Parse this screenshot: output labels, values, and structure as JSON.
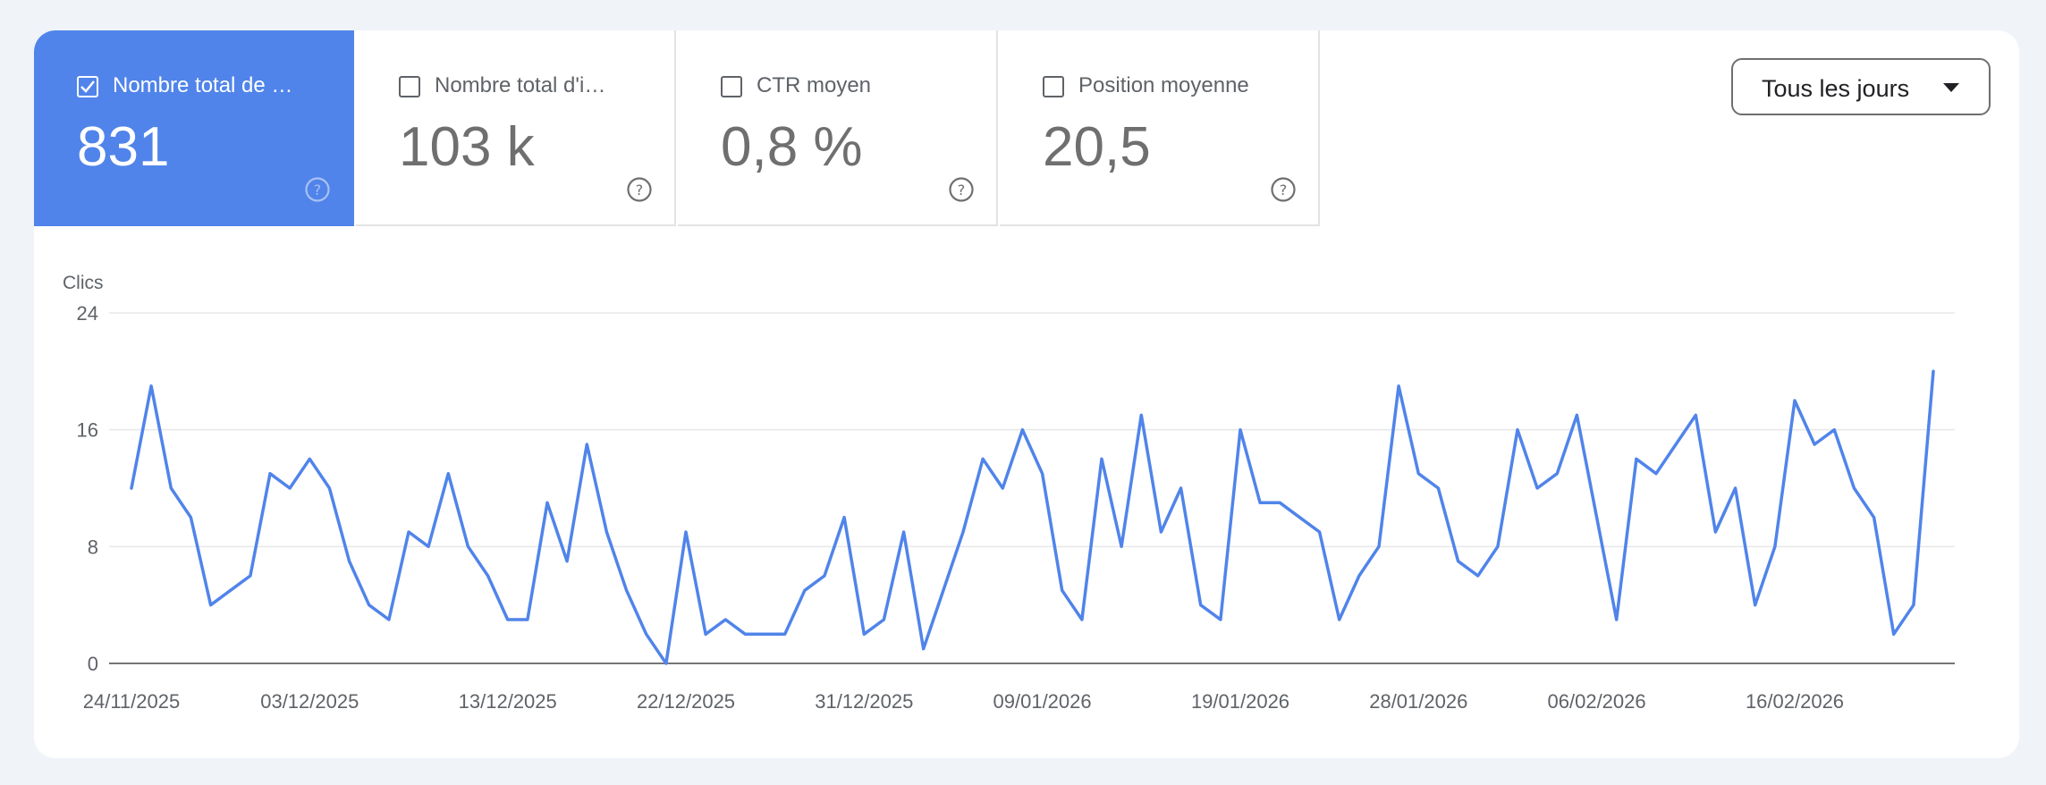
{
  "metrics": [
    {
      "label": "Nombre total de …",
      "value": "831",
      "checked": true
    },
    {
      "label": "Nombre total d'i…",
      "value": "103 k",
      "checked": false
    },
    {
      "label": "CTR moyen",
      "value": "0,8 %",
      "checked": false
    },
    {
      "label": "Position moyenne",
      "value": "20,5",
      "checked": false
    }
  ],
  "period_select": {
    "value": "Tous les jours"
  },
  "colors": {
    "accent": "#5084ea",
    "line": "#5084ea",
    "grid": "#e8e8e8",
    "axis": "#5f6368"
  },
  "chart_data": {
    "type": "line",
    "ylabel": "Clics",
    "ylim": [
      0,
      24
    ],
    "yticks": [
      0,
      8,
      16,
      24
    ],
    "x_tick_labels": [
      "24/11/2025",
      "03/12/2025",
      "13/12/2025",
      "22/12/2025",
      "31/12/2025",
      "09/01/2026",
      "19/01/2026",
      "28/01/2026",
      "06/02/2026",
      "16/02/2026"
    ],
    "x_tick_indices": [
      0,
      9,
      19,
      28,
      37,
      46,
      56,
      65,
      74,
      84
    ],
    "grid": true,
    "series": [
      {
        "values": [
          12,
          19,
          12,
          10,
          4,
          5,
          6,
          13,
          12,
          14,
          12,
          7,
          4,
          3,
          9,
          8,
          13,
          8,
          6,
          3,
          3,
          11,
          7,
          15,
          9,
          5,
          2,
          0,
          9,
          2,
          3,
          2,
          2,
          2,
          5,
          6,
          10,
          2,
          3,
          9,
          1,
          5,
          9,
          14,
          12,
          16,
          13,
          5,
          3,
          14,
          8,
          17,
          9,
          12,
          4,
          3,
          16,
          11,
          11,
          10,
          9,
          3,
          6,
          8,
          19,
          13,
          12,
          7,
          6,
          8,
          16,
          12,
          13,
          17,
          10,
          3,
          14,
          13,
          15,
          17,
          9,
          12,
          4,
          8,
          18,
          15,
          16,
          12,
          10,
          2,
          4,
          20
        ]
      }
    ]
  }
}
